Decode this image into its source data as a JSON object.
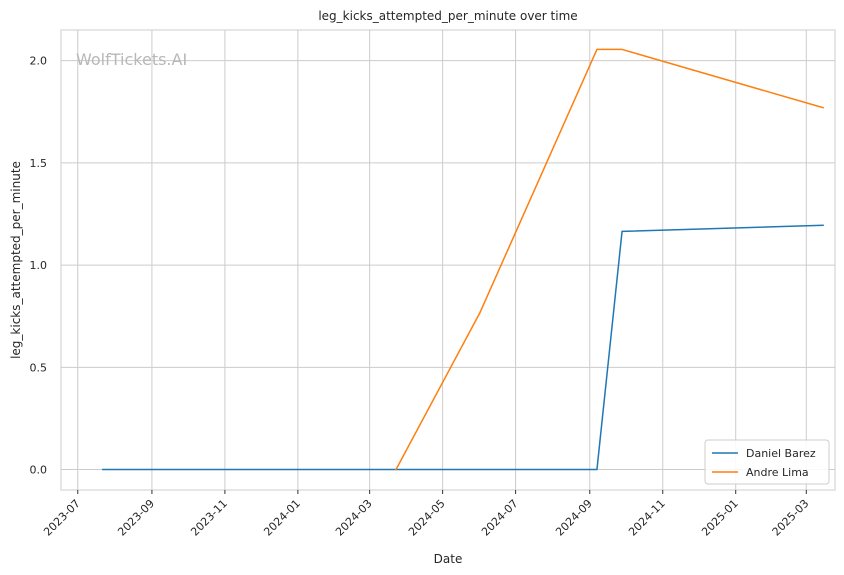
{
  "chart_data": {
    "type": "line",
    "title": "leg_kicks_attempted_per_minute over time",
    "xlabel": "Date",
    "ylabel": "leg_kicks_attempted_per_minute",
    "watermark": "WolfTickets.AI",
    "xlim": [
      "2023-06-17",
      "2025-03-25"
    ],
    "ylim": [
      -0.1,
      2.15
    ],
    "x_ticks": [
      "2023-07",
      "2023-09",
      "2023-11",
      "2024-01",
      "2024-03",
      "2024-05",
      "2024-07",
      "2024-09",
      "2024-11",
      "2025-01",
      "2025-03"
    ],
    "y_ticks": [
      "0.0",
      "0.5",
      "1.0",
      "1.5",
      "2.0"
    ],
    "grid": true,
    "legend_position": "bottom-right",
    "series": [
      {
        "name": "Daniel Barez",
        "color": "#1f77b4",
        "points": [
          {
            "x": "2023-07-22",
            "y": 0.0
          },
          {
            "x": "2024-03-23",
            "y": 0.0
          },
          {
            "x": "2024-09-07",
            "y": 0.0
          },
          {
            "x": "2024-09-28",
            "y": 1.165
          },
          {
            "x": "2025-03-15",
            "y": 1.195
          }
        ]
      },
      {
        "name": "Andre Lima",
        "color": "#ff7f0e",
        "points": [
          {
            "x": "2024-03-23",
            "y": 0.0
          },
          {
            "x": "2024-06-01",
            "y": 0.765
          },
          {
            "x": "2024-09-07",
            "y": 2.055
          },
          {
            "x": "2024-09-28",
            "y": 2.055
          },
          {
            "x": "2025-03-15",
            "y": 1.77
          }
        ]
      }
    ]
  }
}
